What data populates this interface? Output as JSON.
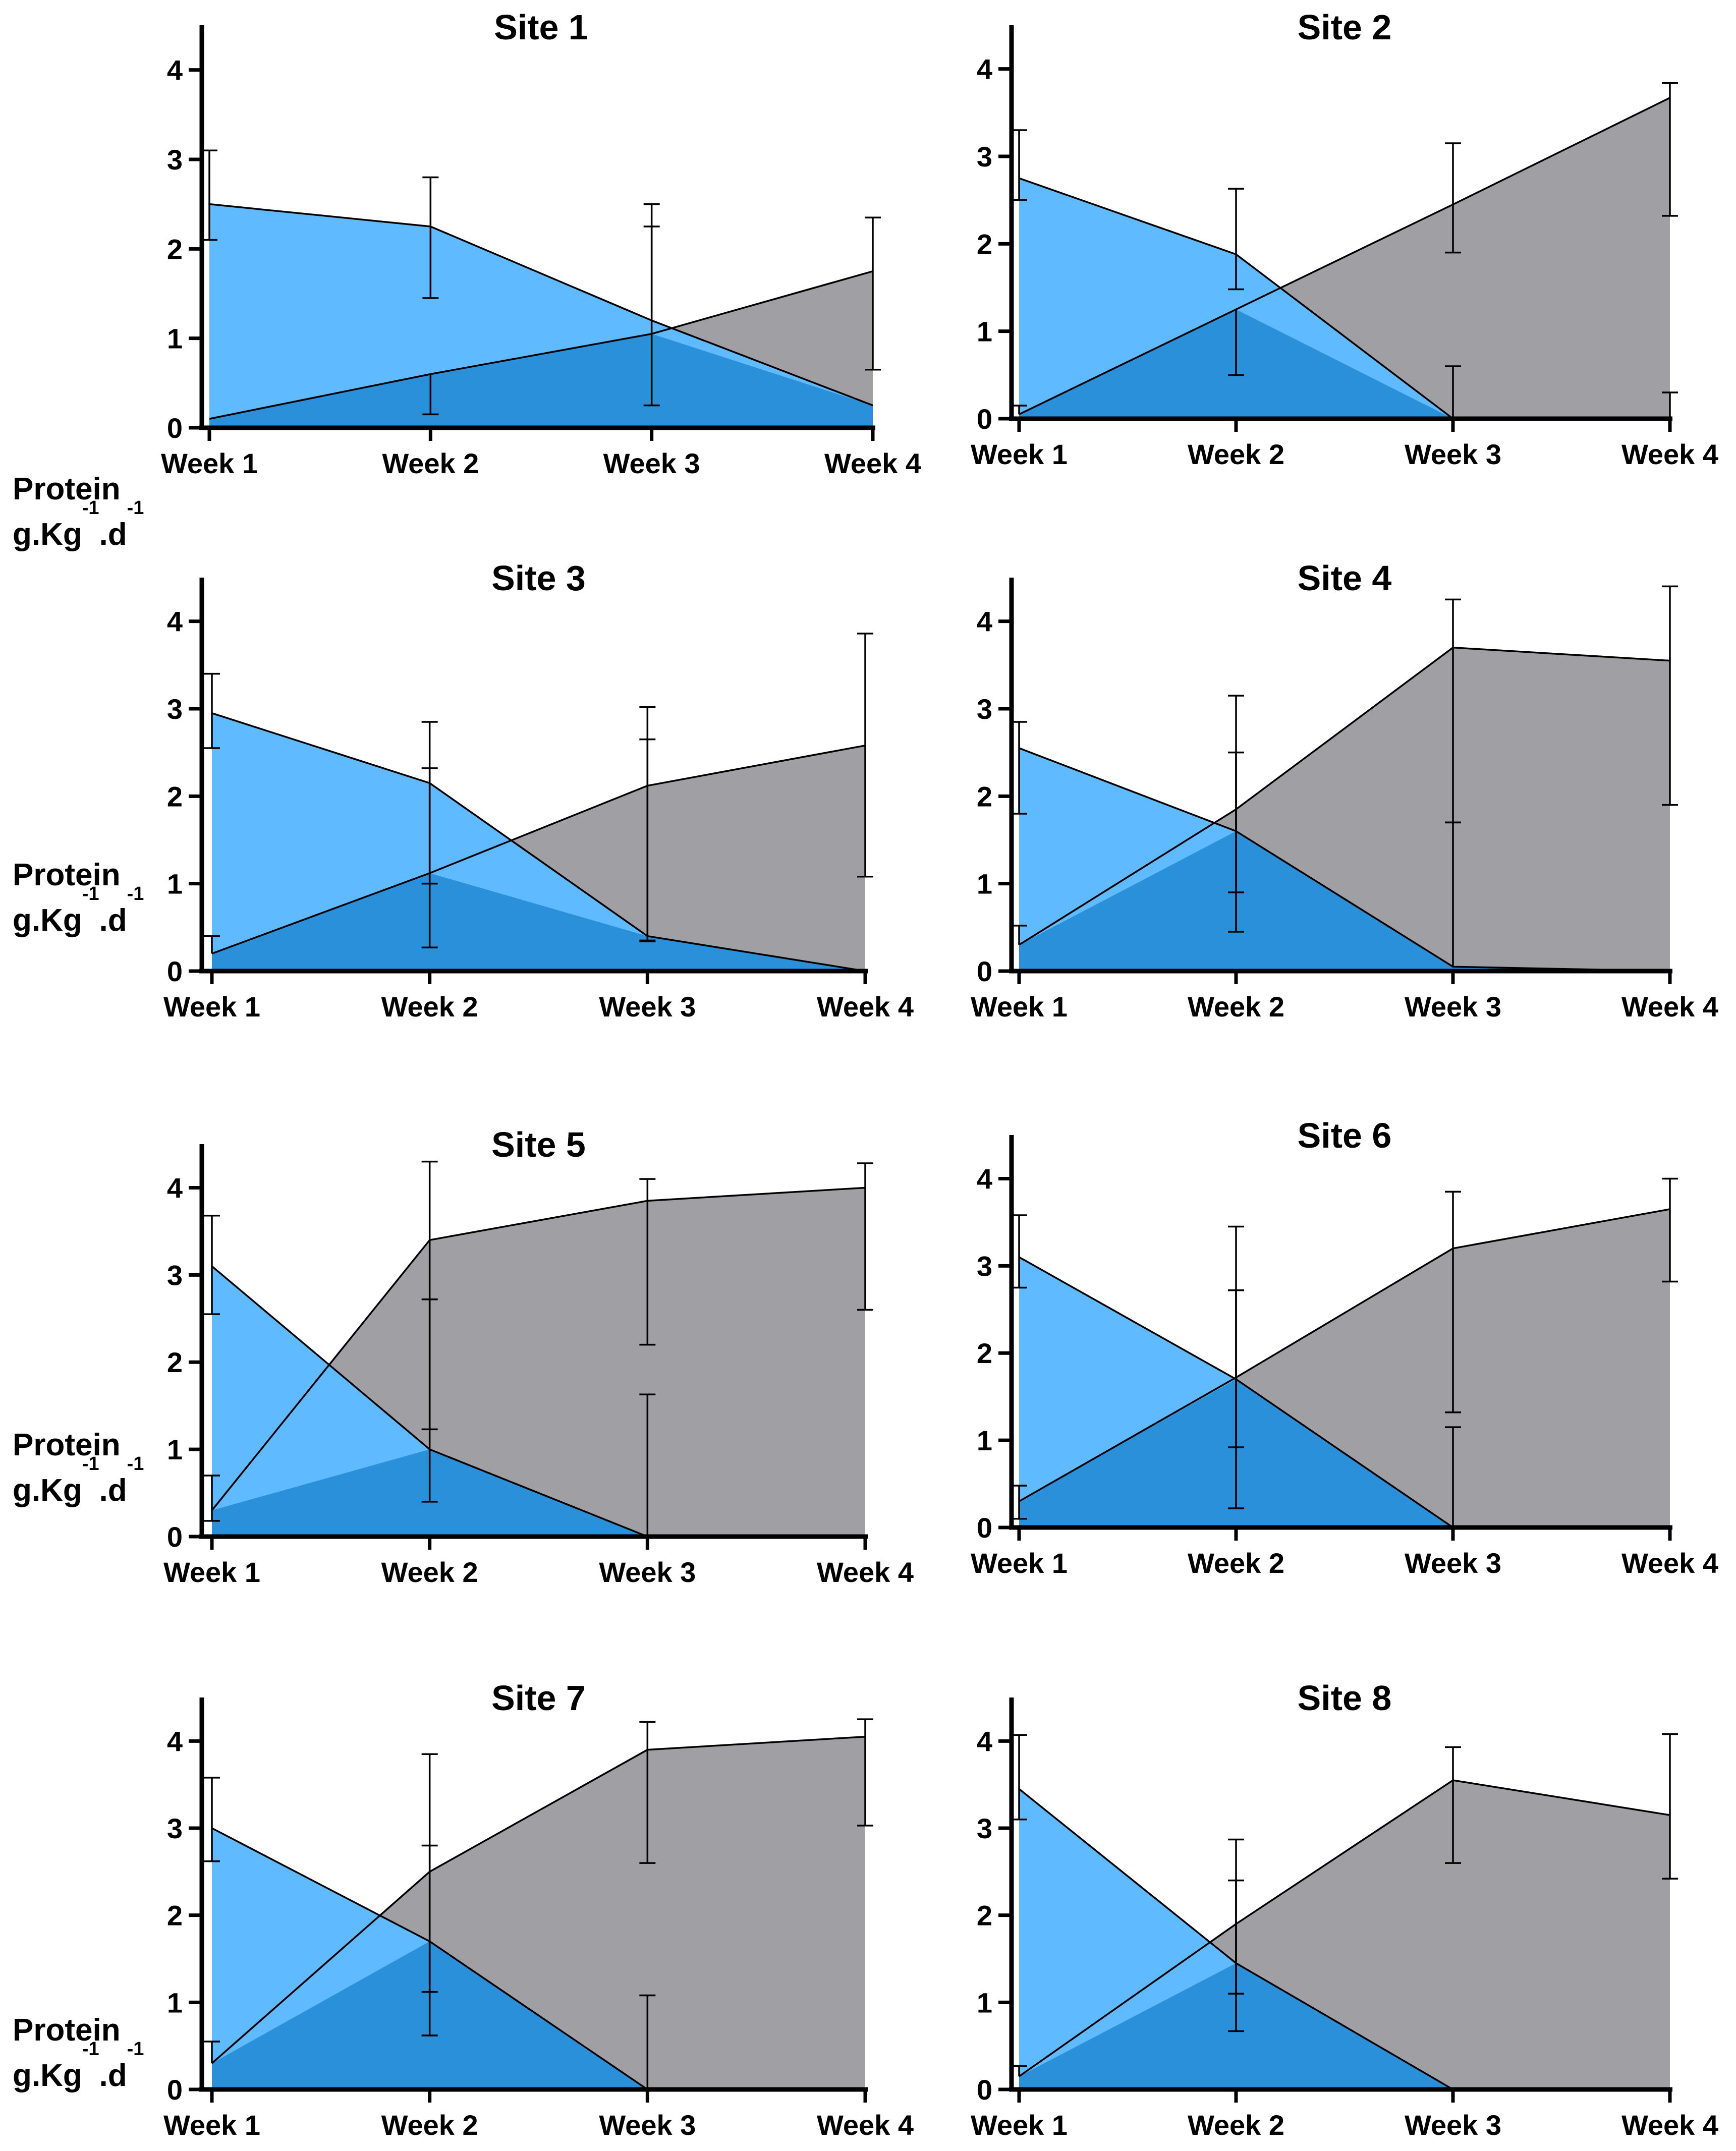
{
  "ylabel": {
    "line1": "Protein",
    "base": "g.Kg",
    "exp1": "-1",
    "mid": ".d",
    "exp2": "-1"
  },
  "colors": {
    "series_a": "#5fbaff",
    "series_b": "#a09fa4",
    "overlap": "#2a90d9",
    "stroke": "#000000"
  },
  "chart_data": [
    {
      "type": "area",
      "title": "Site 1",
      "categories": [
        "Week 1",
        "Week 2",
        "Week 3",
        "Week 4"
      ],
      "ylim": [
        0,
        4.5
      ],
      "yticks": [
        "0",
        "1",
        "2",
        "3",
        "4"
      ],
      "series": [
        {
          "name": "series_a",
          "values": [
            2.5,
            2.25,
            1.2,
            0.25
          ],
          "err_up": [
            0.6,
            0.55,
            1.3,
            0.0
          ],
          "err_down": [
            0.4,
            0.8,
            0.0,
            0.0
          ]
        },
        {
          "name": "series_b",
          "values": [
            0.1,
            0.6,
            1.05,
            1.75
          ],
          "err_up": [
            0.0,
            0.0,
            1.2,
            0.6
          ],
          "err_down": [
            0.0,
            0.45,
            0.8,
            1.1
          ]
        }
      ]
    },
    {
      "type": "area",
      "title": "Site 2",
      "categories": [
        "Week 1",
        "Week 2",
        "Week 3",
        "Week 4"
      ],
      "ylim": [
        0,
        4.5
      ],
      "yticks": [
        "0",
        "1",
        "2",
        "3",
        "4"
      ],
      "series": [
        {
          "name": "series_a",
          "values": [
            2.75,
            1.88,
            0.0,
            0.0
          ],
          "err_up": [
            0.55,
            0.75,
            0.6,
            0.3
          ],
          "err_down": [
            0.25,
            0.4,
            0.0,
            0.0
          ]
        },
        {
          "name": "series_b",
          "values": [
            0.05,
            1.25,
            2.45,
            3.67
          ],
          "err_up": [
            0.1,
            0.0,
            0.7,
            0.17
          ],
          "err_down": [
            0.0,
            0.75,
            0.55,
            1.35
          ]
        }
      ]
    },
    {
      "type": "area",
      "title": "Site 3",
      "categories": [
        "Week 1",
        "Week 2",
        "Week 3",
        "Week 4"
      ],
      "ylim": [
        0,
        4.5
      ],
      "yticks": [
        "0",
        "1",
        "2",
        "3",
        "4"
      ],
      "series": [
        {
          "name": "series_a",
          "values": [
            2.95,
            2.15,
            0.4,
            0.0
          ],
          "err_up": [
            0.45,
            0.7,
            2.25,
            0.0
          ],
          "err_down": [
            0.4,
            1.15,
            0.05,
            0.0
          ]
        },
        {
          "name": "series_b",
          "values": [
            0.2,
            1.12,
            2.12,
            2.58
          ],
          "err_up": [
            0.2,
            1.2,
            0.9,
            1.28
          ],
          "err_down": [
            0.0,
            0.85,
            1.78,
            1.5
          ]
        }
      ]
    },
    {
      "type": "area",
      "title": "Site 4",
      "categories": [
        "Week 1",
        "Week 2",
        "Week 3",
        "Week 4"
      ],
      "ylim": [
        0,
        4.5
      ],
      "yticks": [
        "0",
        "1",
        "2",
        "3",
        "4"
      ],
      "series": [
        {
          "name": "series_a",
          "values": [
            2.55,
            1.6,
            0.05,
            0.0
          ],
          "err_up": [
            0.3,
            0.9,
            1.65,
            0.0
          ],
          "err_down": [
            0.75,
            1.15,
            0.0,
            0.0
          ]
        },
        {
          "name": "series_b",
          "values": [
            0.3,
            1.85,
            3.7,
            3.55
          ],
          "err_up": [
            0.22,
            1.3,
            0.55,
            0.85
          ],
          "err_down": [
            0.0,
            0.95,
            2.0,
            1.65
          ]
        }
      ]
    },
    {
      "type": "area",
      "title": "Site 5",
      "categories": [
        "Week 1",
        "Week 2",
        "Week 3",
        "Week 4"
      ],
      "ylim": [
        0,
        4.5
      ],
      "yticks": [
        "0",
        "1",
        "2",
        "3",
        "4"
      ],
      "series": [
        {
          "name": "series_a",
          "values": [
            3.1,
            1.0,
            0.0,
            0.0
          ],
          "err_up": [
            0.58,
            1.72,
            1.63,
            0.0
          ],
          "err_down": [
            0.55,
            0.6,
            0.0,
            0.0
          ]
        },
        {
          "name": "series_b",
          "values": [
            0.3,
            3.4,
            3.85,
            4.0
          ],
          "err_up": [
            0.4,
            0.9,
            0.25,
            0.28
          ],
          "err_down": [
            0.12,
            2.17,
            1.65,
            1.4
          ]
        }
      ]
    },
    {
      "type": "area",
      "title": "Site 6",
      "categories": [
        "Week 1",
        "Week 2",
        "Week 3",
        "Week 4"
      ],
      "ylim": [
        0,
        4.5
      ],
      "yticks": [
        "0",
        "1",
        "2",
        "3",
        "4"
      ],
      "series": [
        {
          "name": "series_a",
          "values": [
            3.1,
            1.7,
            0.0,
            0.0
          ],
          "err_up": [
            0.48,
            1.75,
            1.15,
            0.0
          ],
          "err_down": [
            0.35,
            0.78,
            0.0,
            0.0
          ]
        },
        {
          "name": "series_b",
          "values": [
            0.3,
            1.72,
            3.2,
            3.65
          ],
          "err_up": [
            0.18,
            1.0,
            0.65,
            0.35
          ],
          "err_down": [
            0.2,
            1.5,
            1.88,
            0.83
          ]
        }
      ]
    },
    {
      "type": "area",
      "title": "Site 7",
      "categories": [
        "Week 1",
        "Week 2",
        "Week 3",
        "Week 4"
      ],
      "ylim": [
        0,
        4.5
      ],
      "yticks": [
        "0",
        "1",
        "2",
        "3",
        "4"
      ],
      "series": [
        {
          "name": "series_a",
          "values": [
            3.0,
            1.7,
            0.0,
            0.0
          ],
          "err_up": [
            0.58,
            1.1,
            1.08,
            0.0
          ],
          "err_down": [
            0.38,
            0.58,
            0.0,
            0.0
          ]
        },
        {
          "name": "series_b",
          "values": [
            0.3,
            2.5,
            3.9,
            4.05
          ],
          "err_up": [
            0.25,
            1.35,
            0.32,
            0.2
          ],
          "err_down": [
            0.0,
            1.88,
            1.3,
            1.02
          ]
        }
      ]
    },
    {
      "type": "area",
      "title": "Site 8",
      "categories": [
        "Week 1",
        "Week 2",
        "Week 3",
        "Week 4"
      ],
      "ylim": [
        0,
        4.5
      ],
      "yticks": [
        "0",
        "1",
        "2",
        "3",
        "4"
      ],
      "series": [
        {
          "name": "series_a",
          "values": [
            3.45,
            1.45,
            0.0,
            0.0
          ],
          "err_up": [
            0.62,
            1.42,
            0.0,
            0.0
          ],
          "err_down": [
            0.35,
            0.78,
            0.0,
            0.0
          ]
        },
        {
          "name": "series_b",
          "values": [
            0.15,
            1.9,
            3.55,
            3.15
          ],
          "err_up": [
            0.12,
            0.5,
            0.38,
            0.93
          ],
          "err_down": [
            0.0,
            0.8,
            0.95,
            0.73
          ]
        }
      ]
    }
  ]
}
